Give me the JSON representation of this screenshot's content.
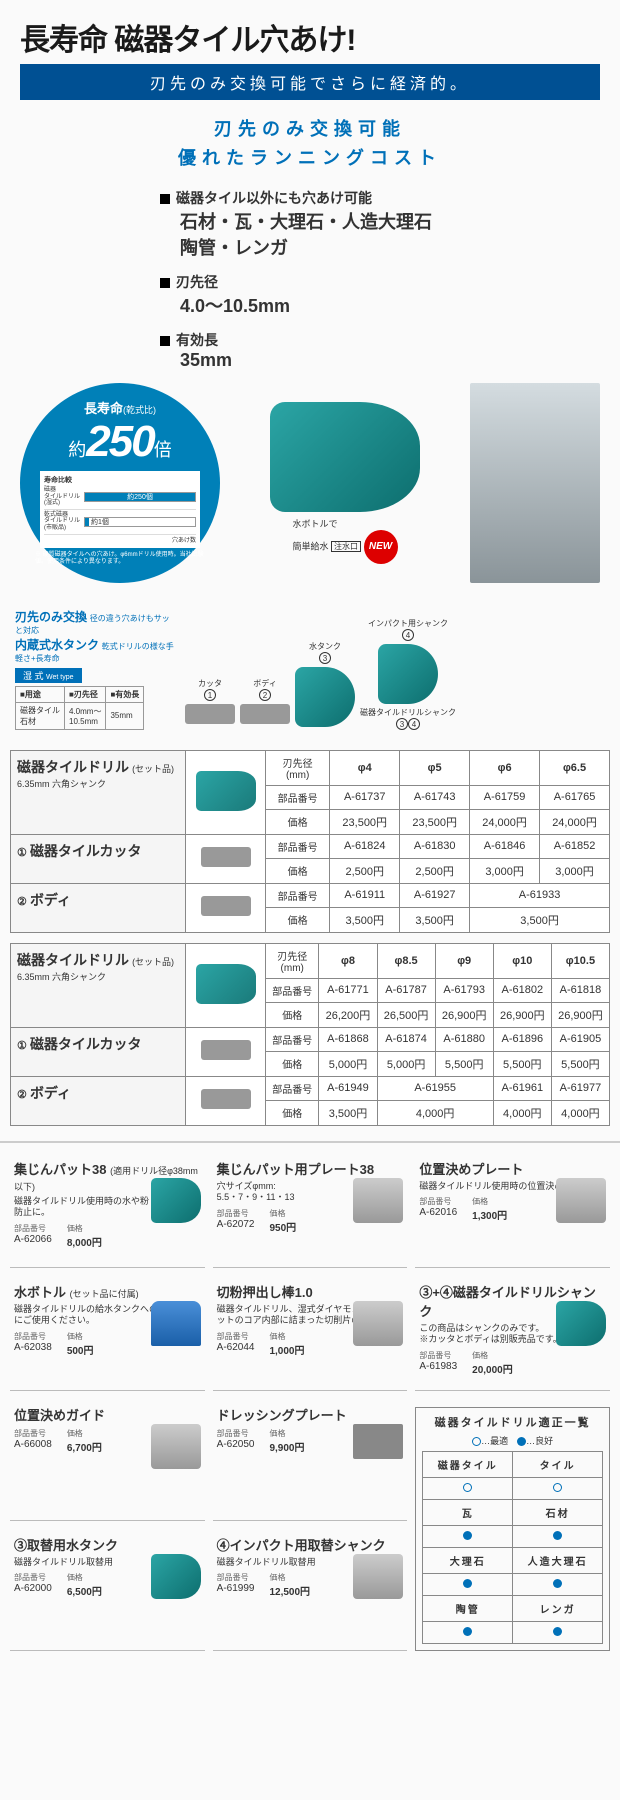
{
  "hero": {
    "title": "長寿命 磁器タイル穴あけ!",
    "subtitle_bar": "刃先のみ交換可能でさらに経済的。",
    "sub_headline_1": "刃先のみ交換可能",
    "sub_headline_2": "優れたランニングコスト",
    "features": [
      {
        "head": "磁器タイル以外にも穴あけ可能",
        "body": "石材・瓦・大理石・人造大理石\n陶管・レンガ"
      },
      {
        "head": "刃先径",
        "body": "4.0〜10.5mm"
      },
      {
        "head": "有効長",
        "body_prefix": "",
        "body": "35mm"
      }
    ],
    "badge": {
      "top": "長寿命",
      "top_paren": "(乾式比)",
      "approx": "約",
      "number": "250",
      "unit": "倍",
      "chart_title": "寿命比較",
      "row1_label": "磁器\nタイルドリル\n(湿式)",
      "row1_text": "約250個",
      "row1_pct": 100,
      "row2_label": "乾式磁器\nタイルドリル\n(市販品)",
      "row2_text": "約1個",
      "row2_pct": 4,
      "x_axis": "穴あけ数",
      "note": "※ 硬質磁器タイルへの穴あけ。φ6mmドリル使用時。当社試験値。使用条件により異なります。"
    },
    "drill_annot": {
      "line1": "水ボトルで",
      "line2": "簡単給水",
      "port": "注水口"
    },
    "new": "NEW"
  },
  "spec": {
    "title1": "刃先のみ交換",
    "note1": "径の違う穴あけもサッと対応",
    "title2": "内蔵式水タンク",
    "note2": "乾式ドリルの様な手軽さ+長寿命",
    "wet": "湿 式",
    "wet_en": "Wet type",
    "cols": [
      "■用途",
      "■刃先径",
      "■有効長"
    ],
    "vals": [
      "磁器タイル\n石材",
      "4.0mm〜\n10.5mm",
      "35mm"
    ],
    "parts": [
      "カッタ",
      "ボディ",
      "水タンク",
      "インパクト用シャンク"
    ],
    "caption": "磁器タイルドリルシャンク"
  },
  "table1": {
    "name": "磁器タイルドリル",
    "name_sub": "(セット品)",
    "shank": "6.35mm 六角シャンク",
    "header": "刃先径\n(mm)",
    "diameters": [
      "φ4",
      "φ5",
      "φ6",
      "φ6.5"
    ],
    "rows": [
      {
        "label": "部品番号",
        "vals": [
          "A-61737",
          "A-61743",
          "A-61759",
          "A-61765"
        ]
      },
      {
        "label": "価格",
        "vals": [
          "23,500円",
          "23,500円",
          "24,000円",
          "24,000円"
        ]
      }
    ],
    "sub1": {
      "num": "①",
      "name": "磁器タイルカッタ",
      "rows": [
        {
          "label": "部品番号",
          "vals": [
            "A-61824",
            "A-61830",
            "A-61846",
            "A-61852"
          ]
        },
        {
          "label": "価格",
          "vals": [
            "2,500円",
            "2,500円",
            "3,000円",
            "3,000円"
          ]
        }
      ]
    },
    "sub2": {
      "num": "②",
      "name": "ボディ",
      "rows": [
        {
          "label": "部品番号",
          "vals": [
            "A-61911",
            "A-61927",
            "A-61933",
            ""
          ],
          "span": [
            1,
            1,
            2
          ]
        },
        {
          "label": "価格",
          "vals": [
            "3,500円",
            "3,500円",
            "3,500円",
            ""
          ],
          "span": [
            1,
            1,
            2
          ]
        }
      ]
    }
  },
  "table2": {
    "name": "磁器タイルドリル",
    "name_sub": "(セット品)",
    "shank": "6.35mm 六角シャンク",
    "header": "刃先径\n(mm)",
    "diameters": [
      "φ8",
      "φ8.5",
      "φ9",
      "φ10",
      "φ10.5"
    ],
    "rows": [
      {
        "label": "部品番号",
        "vals": [
          "A-61771",
          "A-61787",
          "A-61793",
          "A-61802",
          "A-61818"
        ]
      },
      {
        "label": "価格",
        "vals": [
          "26,200円",
          "26,500円",
          "26,900円",
          "26,900円",
          "26,900円"
        ]
      }
    ],
    "sub1": {
      "num": "①",
      "name": "磁器タイルカッタ",
      "rows": [
        {
          "label": "部品番号",
          "vals": [
            "A-61868",
            "A-61874",
            "A-61880",
            "A-61896",
            "A-61905"
          ]
        },
        {
          "label": "価格",
          "vals": [
            "5,000円",
            "5,000円",
            "5,500円",
            "5,500円",
            "5,500円"
          ]
        }
      ]
    },
    "sub2": {
      "num": "②",
      "name": "ボディ",
      "rows": [
        {
          "label": "部品番号",
          "vals": [
            "A-61949",
            "A-61955",
            "A-61961",
            "A-61977"
          ],
          "span": [
            1,
            2,
            1,
            1
          ]
        },
        {
          "label": "価格",
          "vals": [
            "3,500円",
            "4,000円",
            "4,000円",
            "4,000円"
          ],
          "span": [
            1,
            2,
            1,
            1
          ]
        }
      ]
    }
  },
  "accessories": [
    {
      "name": "集じんパット38",
      "sub": "(適用ドリル径φ38mm以下)",
      "desc": "磁器タイルドリル使用時の水や粉じん飛散の防止に。",
      "part": "A-62066",
      "price": "8,000円",
      "img": "teal"
    },
    {
      "name": "集じんパット用プレート38",
      "desc": "穴サイズφmm:\n5.5・7・9・11・13",
      "part": "A-62072",
      "price": "950円",
      "img": "metal"
    },
    {
      "name": "位置決めプレート",
      "desc": "磁器タイルドリル使用時の位置決め用",
      "part": "A-62016",
      "price": "1,300円",
      "img": "metal"
    },
    {
      "name": "水ボトル",
      "sub": "(セット品に付属)",
      "desc": "磁器タイルドリルの給水タンクへの水の注入にご使用ください。",
      "part": "A-62038",
      "price": "500円",
      "img": "blue"
    },
    {
      "name": "切粉押出し棒1.0",
      "desc": "磁器タイルドリル、湿式ダイヤモンドコアビットのコア内部に詰まった切削片の除去に。",
      "part": "A-62044",
      "price": "1,000円",
      "img": "metal"
    },
    {
      "name": "③+④磁器タイルドリルシャンク",
      "desc": "この商品はシャンクのみです。\n※カッタとボディは別販売品です。",
      "part": "A-61983",
      "price": "20,000円",
      "img": "teal"
    },
    {
      "name": "位置決めガイド",
      "desc": "",
      "part": "A-66008",
      "price": "6,700円",
      "img": "metal"
    },
    {
      "name": "ドレッシングプレート",
      "desc": "",
      "part": "A-62050",
      "price": "9,900円",
      "img": "rect"
    },
    {
      "name": "③取替用水タンク",
      "desc": "磁器タイルドリル取替用",
      "part": "A-62000",
      "price": "6,500円",
      "img": "teal"
    },
    {
      "name": "④インパクト用取替シャンク",
      "desc": "磁器タイルドリル取替用",
      "part": "A-61999",
      "price": "12,500円",
      "img": "metal"
    }
  ],
  "suitability": {
    "title": "磁器タイルドリル適正一覧",
    "legend_best": "…最適",
    "legend_good": "…良好",
    "materials": [
      [
        "磁器タイル",
        "open",
        "タイル",
        "open"
      ],
      [
        "瓦",
        "fill",
        "石材",
        "fill"
      ],
      [
        "大理石",
        "fill",
        "人造大理石",
        "fill"
      ],
      [
        "陶管",
        "fill",
        "レンガ",
        "fill"
      ]
    ]
  },
  "labels": {
    "part": "部品番号",
    "price": "価格"
  }
}
